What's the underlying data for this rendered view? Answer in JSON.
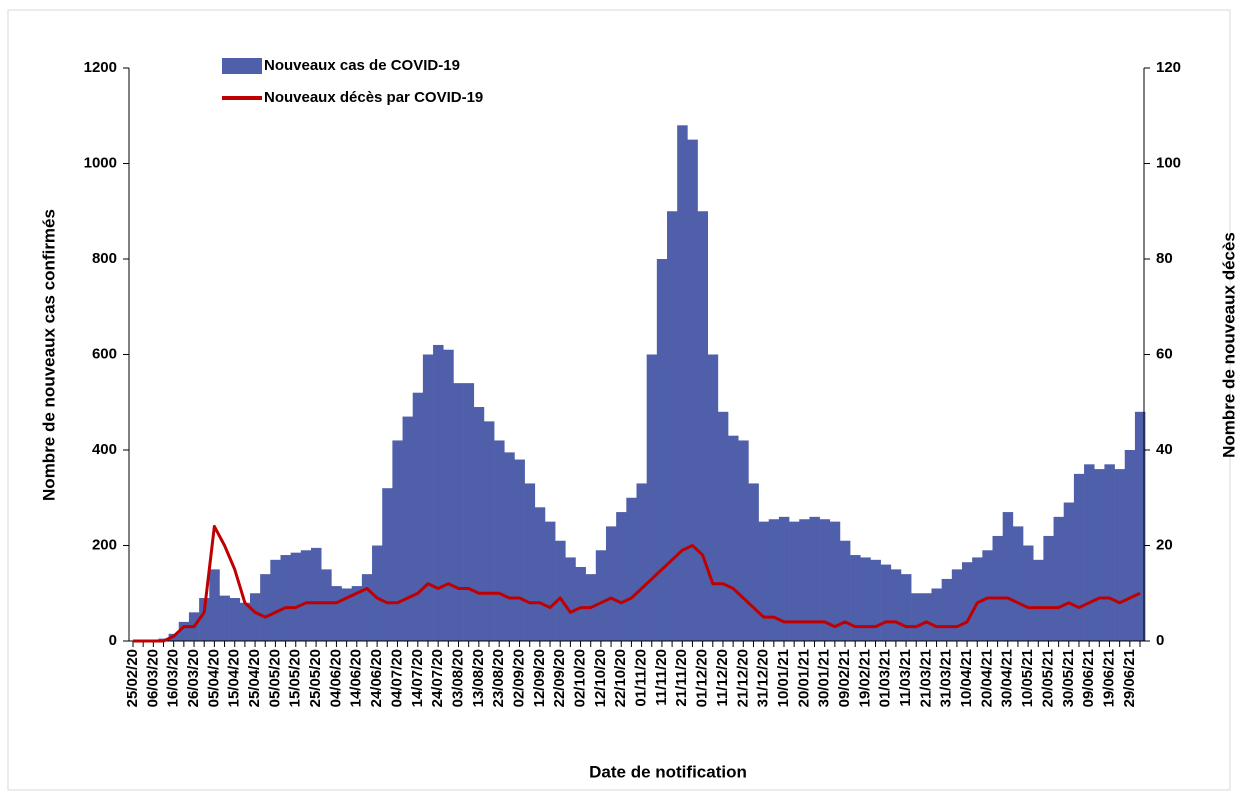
{
  "chart_data": {
    "type": "bar-line",
    "x_label": "Date de notification",
    "y_label": "Nombre de nouveaux cas confirmés",
    "y2_label": "Nombre de nouveaux  décès",
    "categories": [
      "25/02/20",
      null,
      "06/03/20",
      null,
      "16/03/20",
      null,
      "26/03/20",
      null,
      "05/04/20",
      null,
      "15/04/20",
      null,
      "25/04/20",
      null,
      "05/05/20",
      null,
      "15/05/20",
      null,
      "25/05/20",
      null,
      "04/06/20",
      null,
      "14/06/20",
      null,
      "24/06/20",
      null,
      "04/07/20",
      null,
      "14/07/20",
      null,
      "24/07/20",
      null,
      "03/08/20",
      null,
      "13/08/20",
      null,
      "23/08/20",
      null,
      "02/09/20",
      null,
      "12/09/20",
      null,
      "22/09/20",
      null,
      "02/10/20",
      null,
      "12/10/20",
      null,
      "22/10/20",
      null,
      "01/11/20",
      null,
      "11/11/20",
      null,
      "21/11/20",
      null,
      "01/12/20",
      null,
      "11/12/20",
      null,
      "21/12/20",
      null,
      "31/12/20",
      null,
      "10/01/21",
      null,
      "20/01/21",
      null,
      "30/01/21",
      null,
      "09/02/21",
      null,
      "19/02/21",
      null,
      "01/03/21",
      null,
      "11/03/21",
      null,
      "21/03/21",
      null,
      "31/03/21",
      null,
      "10/04/21",
      null,
      "20/04/21",
      null,
      "30/04/21",
      null,
      "10/05/21",
      null,
      "20/05/21",
      null,
      "30/05/21",
      null,
      "09/06/21",
      null,
      "19/06/21",
      null,
      "29/06/21",
      null
    ],
    "series": [
      {
        "name": "Nouveaux cas de COVID-19",
        "color": "#4f5faa",
        "kind": "bar",
        "values": [
          0,
          0,
          2,
          5,
          15,
          40,
          60,
          90,
          150,
          95,
          90,
          80,
          100,
          140,
          170,
          180,
          185,
          190,
          195,
          150,
          115,
          110,
          115,
          140,
          200,
          320,
          420,
          470,
          520,
          600,
          620,
          610,
          540,
          540,
          490,
          460,
          420,
          395,
          380,
          330,
          280,
          250,
          210,
          175,
          155,
          140,
          190,
          240,
          270,
          300,
          330,
          600,
          800,
          900,
          1080,
          1050,
          900,
          600,
          480,
          430,
          420,
          330,
          250,
          255,
          260,
          250,
          255,
          260,
          255,
          250,
          210,
          180,
          175,
          170,
          160,
          150,
          140,
          100,
          100,
          110,
          130,
          150,
          165,
          175,
          190,
          220,
          270,
          240,
          200,
          170,
          220,
          260,
          290,
          350,
          370,
          360,
          370,
          360,
          400,
          480
        ]
      },
      {
        "name": "Nouveaux décès par COVID-19",
        "color": "#c00000",
        "kind": "line",
        "axis": "y2",
        "values": [
          0,
          0,
          0,
          0,
          1,
          3,
          3,
          6,
          24,
          20,
          15,
          8,
          6,
          5,
          6,
          7,
          7,
          8,
          8,
          8,
          8,
          9,
          10,
          11,
          9,
          8,
          8,
          9,
          10,
          12,
          11,
          12,
          11,
          11,
          10,
          10,
          10,
          9,
          9,
          8,
          8,
          7,
          9,
          6,
          7,
          7,
          8,
          9,
          8,
          9,
          11,
          13,
          15,
          17,
          19,
          20,
          18,
          12,
          12,
          11,
          9,
          7,
          5,
          5,
          4,
          4,
          4,
          4,
          4,
          3,
          4,
          3,
          3,
          3,
          4,
          4,
          3,
          3,
          4,
          3,
          3,
          3,
          4,
          8,
          9,
          9,
          9,
          8,
          7,
          7,
          7,
          7,
          8,
          7,
          8,
          9,
          9,
          8,
          9,
          10
        ]
      }
    ],
    "ylim": [
      0,
      1200
    ],
    "yticks": [
      0,
      200,
      400,
      600,
      800,
      1000,
      1200
    ],
    "y2lim": [
      0,
      120
    ],
    "y2ticks": [
      0,
      20,
      40,
      60,
      80,
      100,
      120
    ]
  }
}
